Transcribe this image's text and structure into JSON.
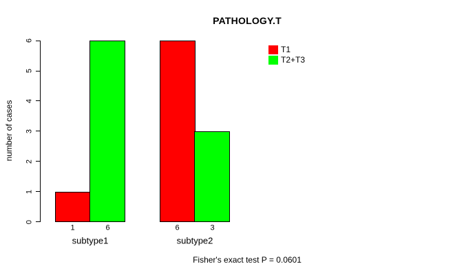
{
  "title": "PATHOLOGY.T",
  "y_axis": {
    "label": "number of cases",
    "ticks": [
      0,
      1,
      2,
      3,
      4,
      5,
      6
    ]
  },
  "legend": [
    {
      "label": "T1",
      "color": "#FF0000"
    },
    {
      "label": "T2+T3",
      "color": "#00FF00"
    }
  ],
  "footer": "Fisher's exact test P = 0.0601",
  "chart_data": {
    "type": "bar",
    "title": "PATHOLOGY.T",
    "xlabel": "",
    "ylabel": "number of cases",
    "ylim": [
      0,
      6
    ],
    "grid": false,
    "background": "#ffffff",
    "categories": [
      "subtype1",
      "subtype2"
    ],
    "series": [
      {
        "name": "T1",
        "color": "#FF0000",
        "values": [
          1,
          6
        ]
      },
      {
        "name": "T2+T3",
        "color": "#00FF00",
        "values": [
          6,
          3
        ]
      }
    ],
    "value_labels": [
      [
        "1",
        "6"
      ],
      [
        "6",
        "3"
      ]
    ],
    "legend_position": "topright",
    "annotation": "Fisher's exact test P = 0.0601"
  }
}
